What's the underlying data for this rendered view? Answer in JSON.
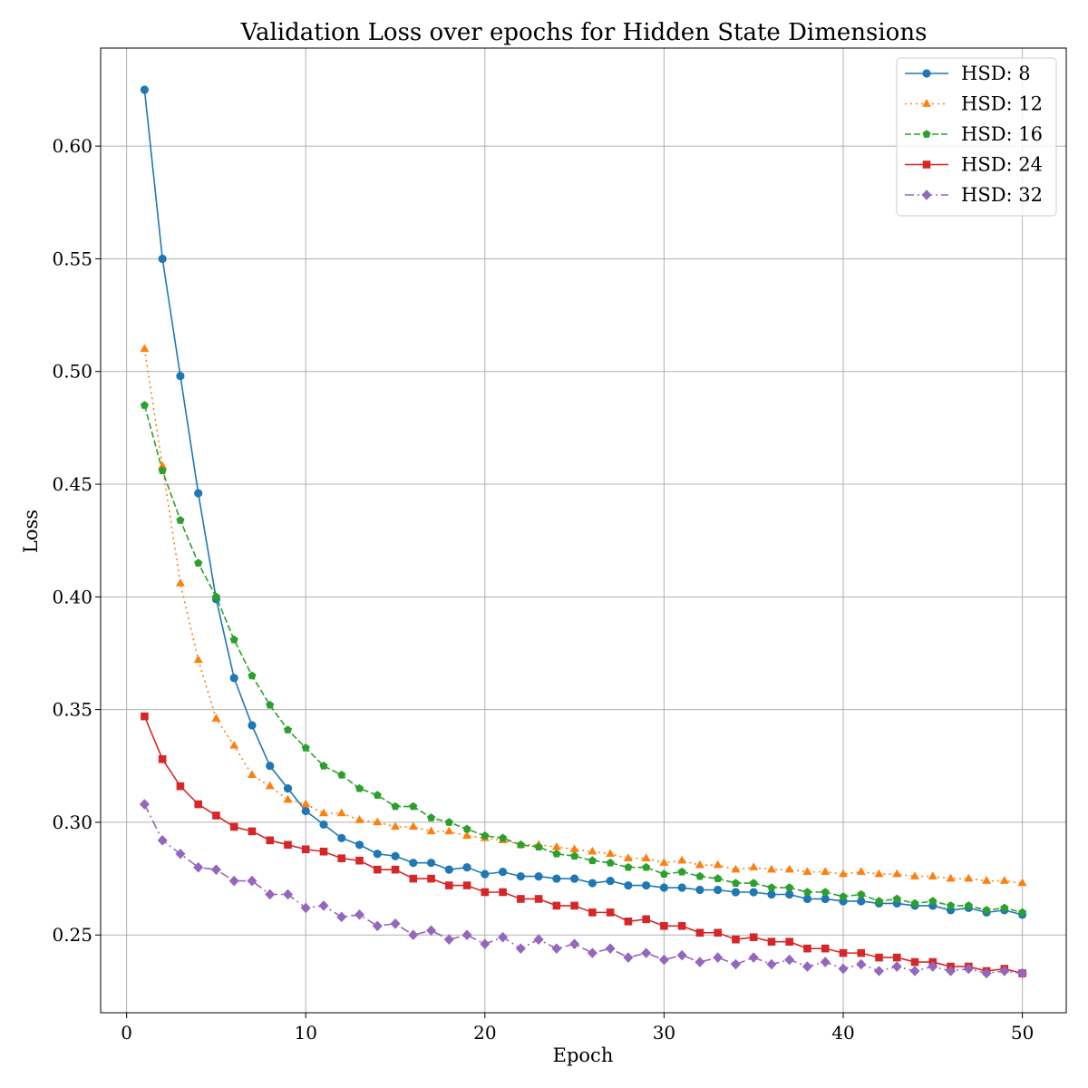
{
  "chart_data": {
    "type": "line",
    "title": "Validation Loss over epochs for Hidden State Dimensions",
    "xlabel": "Epoch",
    "ylabel": "Loss",
    "xlim": [
      -1.45,
      52.45
    ],
    "ylim": [
      0.2155,
      0.6435
    ],
    "xticks": [
      0,
      10,
      20,
      30,
      40,
      50
    ],
    "yticks": [
      0.25,
      0.3,
      0.35,
      0.4,
      0.45,
      0.5,
      0.55,
      0.6
    ],
    "grid": true,
    "legend": "top-right",
    "x": [
      1,
      2,
      3,
      4,
      5,
      6,
      7,
      8,
      9,
      10,
      11,
      12,
      13,
      14,
      15,
      16,
      17,
      18,
      19,
      20,
      21,
      22,
      23,
      24,
      25,
      26,
      27,
      28,
      29,
      30,
      31,
      32,
      33,
      34,
      35,
      36,
      37,
      38,
      39,
      40,
      41,
      42,
      43,
      44,
      45,
      46,
      47,
      48,
      49,
      50
    ],
    "series": [
      {
        "name": "HSD: 8",
        "color": "#1f77b4",
        "dash": "solid",
        "marker": "circle",
        "values": [
          0.625,
          0.55,
          0.498,
          0.446,
          0.399,
          0.364,
          0.343,
          0.325,
          0.315,
          0.305,
          0.299,
          0.293,
          0.29,
          0.286,
          0.285,
          0.282,
          0.282,
          0.279,
          0.28,
          0.277,
          0.278,
          0.276,
          0.276,
          0.275,
          0.275,
          0.273,
          0.274,
          0.272,
          0.272,
          0.271,
          0.271,
          0.27,
          0.27,
          0.269,
          0.269,
          0.268,
          0.268,
          0.266,
          0.266,
          0.265,
          0.265,
          0.264,
          0.264,
          0.263,
          0.263,
          0.261,
          0.262,
          0.26,
          0.261,
          0.259
        ]
      },
      {
        "name": "HSD: 12",
        "color": "#ff7f0e",
        "dash": "dotted",
        "marker": "triangle",
        "values": [
          0.51,
          0.458,
          0.406,
          0.372,
          0.346,
          0.334,
          0.321,
          0.316,
          0.31,
          0.308,
          0.304,
          0.304,
          0.301,
          0.3,
          0.298,
          0.298,
          0.296,
          0.296,
          0.294,
          0.293,
          0.292,
          0.29,
          0.29,
          0.289,
          0.288,
          0.287,
          0.286,
          0.284,
          0.284,
          0.282,
          0.283,
          0.281,
          0.281,
          0.279,
          0.28,
          0.279,
          0.279,
          0.278,
          0.278,
          0.277,
          0.278,
          0.277,
          0.277,
          0.276,
          0.276,
          0.275,
          0.275,
          0.274,
          0.274,
          0.273
        ]
      },
      {
        "name": "HSD: 16",
        "color": "#2ca02c",
        "dash": "dashed",
        "marker": "pentagon",
        "values": [
          0.485,
          0.456,
          0.434,
          0.415,
          0.4,
          0.381,
          0.365,
          0.352,
          0.341,
          0.333,
          0.325,
          0.321,
          0.315,
          0.312,
          0.307,
          0.307,
          0.302,
          0.3,
          0.297,
          0.294,
          0.293,
          0.29,
          0.289,
          0.286,
          0.285,
          0.283,
          0.282,
          0.28,
          0.28,
          0.277,
          0.278,
          0.276,
          0.275,
          0.273,
          0.273,
          0.271,
          0.271,
          0.269,
          0.269,
          0.267,
          0.268,
          0.265,
          0.266,
          0.264,
          0.265,
          0.263,
          0.263,
          0.261,
          0.262,
          0.26
        ]
      },
      {
        "name": "HSD: 24",
        "color": "#d62728",
        "dash": "solid",
        "marker": "square",
        "values": [
          0.347,
          0.328,
          0.316,
          0.308,
          0.303,
          0.298,
          0.296,
          0.292,
          0.29,
          0.288,
          0.287,
          0.284,
          0.283,
          0.279,
          0.279,
          0.275,
          0.275,
          0.272,
          0.272,
          0.269,
          0.269,
          0.266,
          0.266,
          0.263,
          0.263,
          0.26,
          0.26,
          0.256,
          0.257,
          0.254,
          0.254,
          0.251,
          0.251,
          0.248,
          0.249,
          0.247,
          0.247,
          0.244,
          0.244,
          0.242,
          0.242,
          0.24,
          0.24,
          0.238,
          0.238,
          0.236,
          0.236,
          0.234,
          0.235,
          0.233
        ]
      },
      {
        "name": "HSD: 32",
        "color": "#9467bd",
        "dash": "dashdot",
        "marker": "diamond",
        "values": [
          0.308,
          0.292,
          0.286,
          0.28,
          0.279,
          0.274,
          0.274,
          0.268,
          0.268,
          0.262,
          0.263,
          0.258,
          0.259,
          0.254,
          0.255,
          0.25,
          0.252,
          0.248,
          0.25,
          0.246,
          0.249,
          0.244,
          0.248,
          0.244,
          0.246,
          0.242,
          0.244,
          0.24,
          0.242,
          0.239,
          0.241,
          0.238,
          0.24,
          0.237,
          0.24,
          0.237,
          0.239,
          0.236,
          0.238,
          0.235,
          0.237,
          0.234,
          0.236,
          0.234,
          0.236,
          0.234,
          0.235,
          0.233,
          0.234,
          0.233
        ]
      }
    ]
  }
}
